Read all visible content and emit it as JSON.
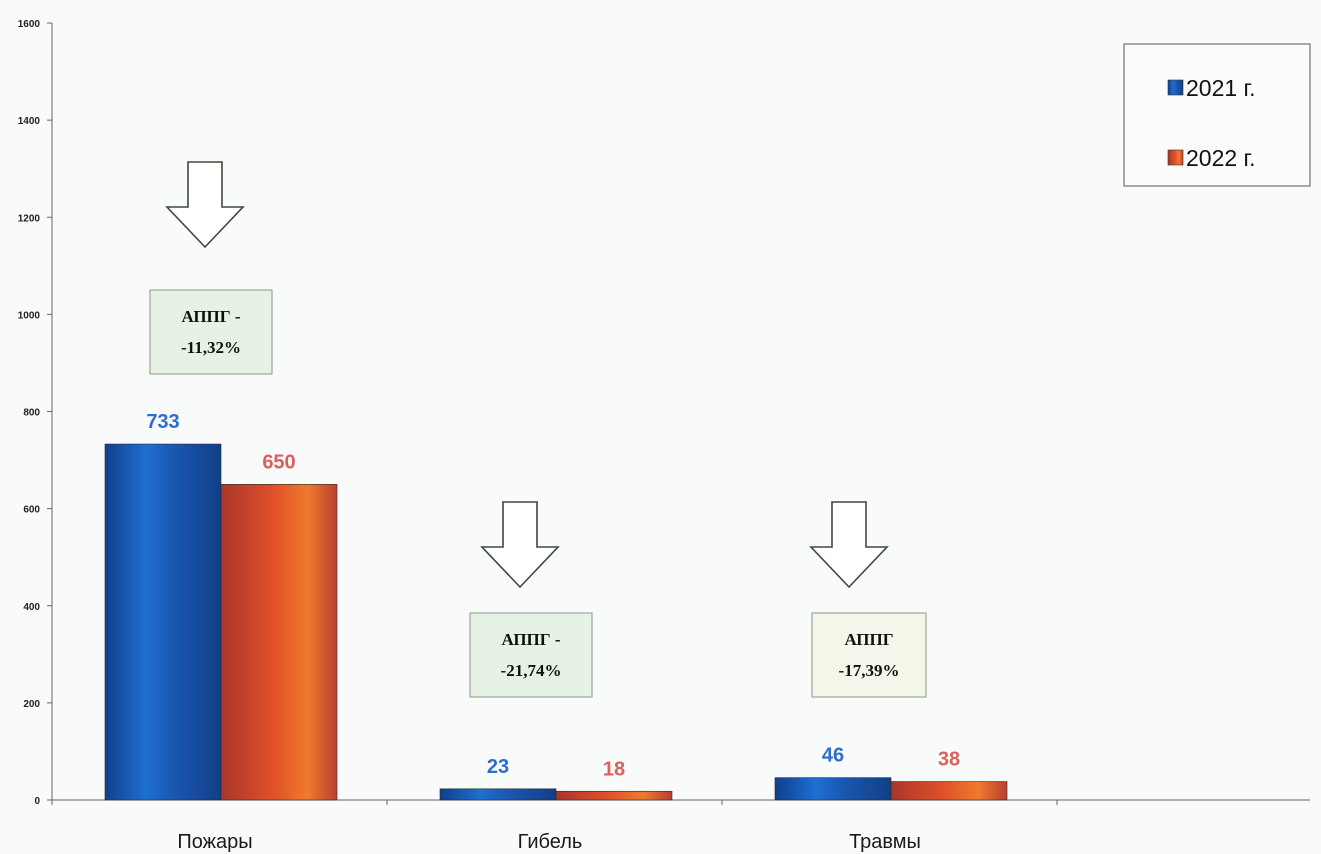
{
  "chart_data": {
    "type": "bar",
    "categories": [
      "Пожары",
      "Гибель",
      "Травмы"
    ],
    "series": [
      {
        "name": "2021 г.",
        "values": [
          733,
          23,
          46
        ],
        "color": "#1a56b0"
      },
      {
        "name": "2022 г.",
        "values": [
          650,
          18,
          38
        ],
        "color": "#d8542e"
      }
    ],
    "value_label_colors": [
      "#2a6fc9",
      "#d9605e"
    ],
    "ylim": [
      0,
      1600
    ],
    "yticks": [
      0,
      200,
      400,
      600,
      800,
      1000,
      1200,
      1400,
      1600
    ],
    "legend_position": "top-right",
    "grid": false,
    "annotations": [
      {
        "category": "Пожары",
        "line1": "АППГ -",
        "line2": "-11,32%",
        "bg": "#e6f3e4",
        "arrow": "down"
      },
      {
        "category": "Гибель",
        "line1": "АППГ -",
        "line2": "-21,74%",
        "bg": "#e6f3e4",
        "arrow": "down"
      },
      {
        "category": "Травмы",
        "line1": "АППГ",
        "line2": "-17,39%",
        "bg": "#f3f6e8",
        "arrow": "down"
      }
    ]
  }
}
